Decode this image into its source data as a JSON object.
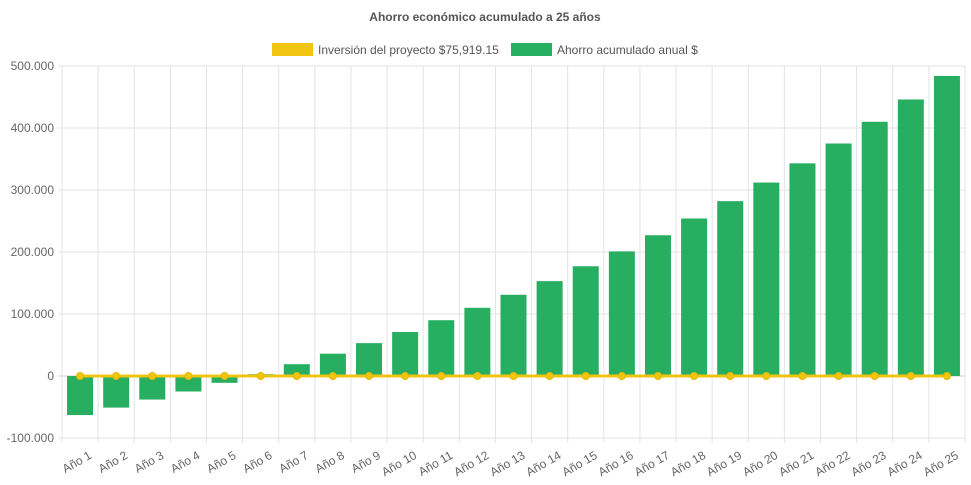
{
  "chart_data": {
    "type": "bar",
    "title": "Ahorro económico acumulado a 25 años",
    "xlabel": "",
    "ylabel": "",
    "ylim": [
      -100000,
      500000
    ],
    "yticks": [
      500000,
      400000,
      300000,
      200000,
      100000,
      0,
      -100000
    ],
    "ytick_labels": [
      "500.000",
      "400.000",
      "300.000",
      "200.000",
      "100.000",
      "0",
      "-100.000"
    ],
    "grid": true,
    "legend_position": "top",
    "categories": [
      "Año 1",
      "Año 2",
      "Año 3",
      "Año 4",
      "Año 5",
      "Año 6",
      "Año 7",
      "Año 8",
      "Año 9",
      "Año 10",
      "Año 11",
      "Año 12",
      "Año 13",
      "Año 14",
      "Año 15",
      "Año 16",
      "Año 17",
      "Año 18",
      "Año 19",
      "Año 20",
      "Año 21",
      "Año 22",
      "Año 23",
      "Año 24",
      "Año 25"
    ],
    "series": [
      {
        "name": "Inversión del proyecto $75,919.15",
        "type": "line",
        "color": "#f1c40f",
        "values": [
          0,
          0,
          0,
          0,
          0,
          0,
          0,
          0,
          0,
          0,
          0,
          0,
          0,
          0,
          0,
          0,
          0,
          0,
          0,
          0,
          0,
          0,
          0,
          0,
          0
        ]
      },
      {
        "name": "Ahorro acumulado anual $",
        "type": "bar",
        "color": "#27ae60",
        "values": [
          -63000,
          -51000,
          -38000,
          -25000,
          -11000,
          3000,
          19000,
          36000,
          53000,
          71000,
          90000,
          110000,
          131000,
          153000,
          177000,
          201000,
          227000,
          254000,
          282000,
          312000,
          343000,
          375000,
          410000,
          446000,
          484000
        ]
      }
    ]
  }
}
